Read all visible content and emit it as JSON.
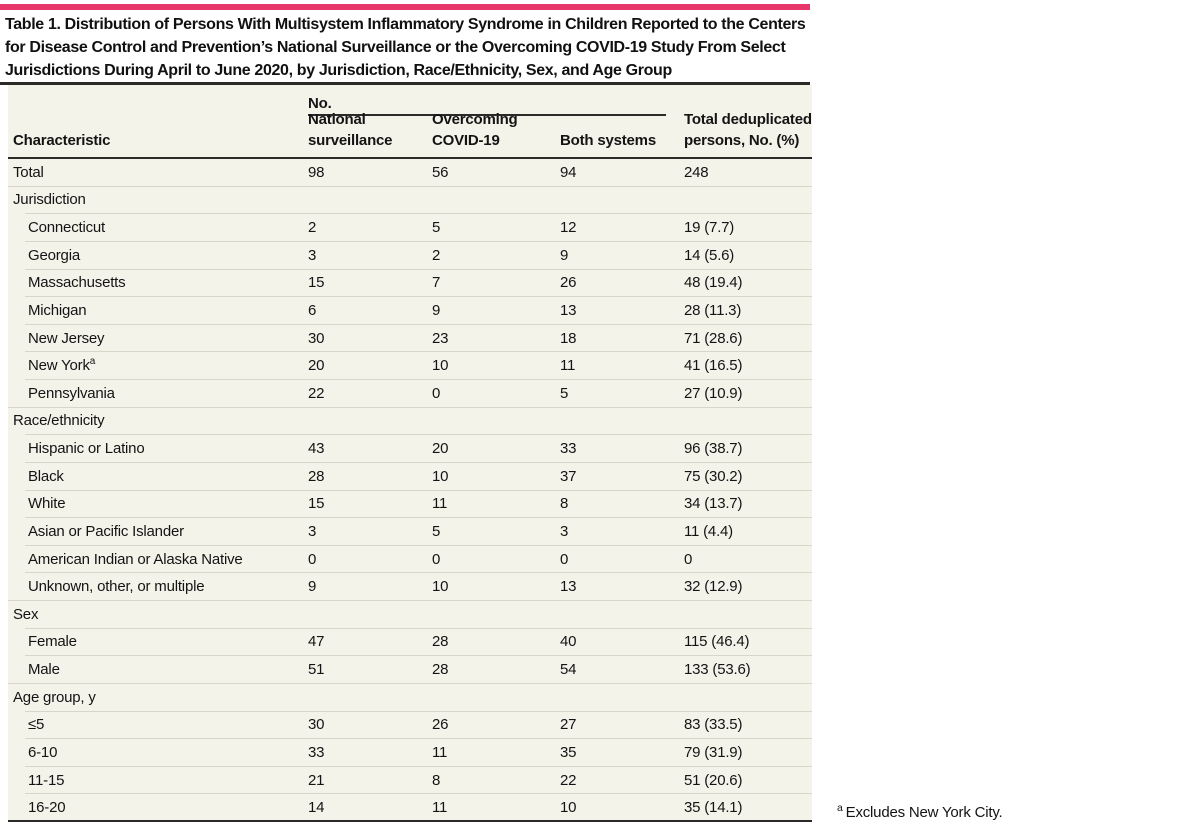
{
  "colors": {
    "accent_bar": "#e73669",
    "table_bg": "#f4f3ea",
    "rule_dark": "#2b2a28",
    "row_line": "#d7d6c8",
    "text": "#141414"
  },
  "title": {
    "lines": [
      "Table 1. Distribution of Persons With Multisystem Inflammatory Syndrome in Children Reported to the Centers",
      "for Disease Control and Prevention’s National Surveillance or the Overcoming COVID-19 Study From Select",
      "Jurisdictions During April to June 2020, by Jurisdiction, Race/Ethnicity, Sex, and Age Group"
    ]
  },
  "table": {
    "header": {
      "characteristic": "Characteristic",
      "group_label": "No.",
      "columns": [
        "National surveillance",
        "Overcoming COVID-19",
        "Both systems"
      ],
      "total_column": "Total deduplicated persons, No. (%)"
    },
    "rows": [
      {
        "label": "Total",
        "indent": 0,
        "section": false,
        "values": [
          "98",
          "56",
          "94",
          "248"
        ],
        "line": "full"
      },
      {
        "label": "Jurisdiction",
        "indent": 0,
        "section": true,
        "values": [
          "",
          "",
          "",
          ""
        ],
        "line": "indent"
      },
      {
        "label": "Connecticut",
        "indent": 1,
        "section": false,
        "values": [
          "2",
          "5",
          "12",
          "19 (7.7)"
        ],
        "line": "indent"
      },
      {
        "label": "Georgia",
        "indent": 1,
        "section": false,
        "values": [
          "3",
          "2",
          "9",
          "14 (5.6)"
        ],
        "line": "indent"
      },
      {
        "label": "Massachusetts",
        "indent": 1,
        "section": false,
        "values": [
          "15",
          "7",
          "26",
          "48 (19.4)"
        ],
        "line": "indent"
      },
      {
        "label": "Michigan",
        "indent": 1,
        "section": false,
        "values": [
          "6",
          "9",
          "13",
          "28 (11.3)"
        ],
        "line": "indent"
      },
      {
        "label": "New Jersey",
        "indent": 1,
        "section": false,
        "values": [
          "30",
          "23",
          "18",
          "71 (28.6)"
        ],
        "line": "indent"
      },
      {
        "label": "New York",
        "sup": "a",
        "indent": 1,
        "section": false,
        "values": [
          "20",
          "10",
          "11",
          "41 (16.5)"
        ],
        "line": "indent"
      },
      {
        "label": "Pennsylvania",
        "indent": 1,
        "section": false,
        "values": [
          "22",
          "0",
          "5",
          "27 (10.9)"
        ],
        "line": "full"
      },
      {
        "label": "Race/ethnicity",
        "indent": 0,
        "section": true,
        "values": [
          "",
          "",
          "",
          ""
        ],
        "line": "indent"
      },
      {
        "label": "Hispanic or Latino",
        "indent": 1,
        "section": false,
        "values": [
          "43",
          "20",
          "33",
          "96 (38.7)"
        ],
        "line": "indent"
      },
      {
        "label": "Black",
        "indent": 1,
        "section": false,
        "values": [
          "28",
          "10",
          "37",
          "75 (30.2)"
        ],
        "line": "indent"
      },
      {
        "label": "White",
        "indent": 1,
        "section": false,
        "values": [
          "15",
          "11",
          "8",
          "34 (13.7)"
        ],
        "line": "indent"
      },
      {
        "label": "Asian or Pacific Islander",
        "indent": 1,
        "section": false,
        "values": [
          "3",
          "5",
          "3",
          "11 (4.4)"
        ],
        "line": "indent"
      },
      {
        "label": "American Indian or Alaska Native",
        "indent": 1,
        "section": false,
        "values": [
          "0",
          "0",
          "0",
          "0"
        ],
        "line": "indent"
      },
      {
        "label": "Unknown, other, or multiple",
        "indent": 1,
        "section": false,
        "values": [
          "9",
          "10",
          "13",
          "32 (12.9)"
        ],
        "line": "full"
      },
      {
        "label": "Sex",
        "indent": 0,
        "section": true,
        "values": [
          "",
          "",
          "",
          ""
        ],
        "line": "indent"
      },
      {
        "label": "Female",
        "indent": 1,
        "section": false,
        "values": [
          "47",
          "28",
          "40",
          "115 (46.4)"
        ],
        "line": "indent"
      },
      {
        "label": "Male",
        "indent": 1,
        "section": false,
        "values": [
          "51",
          "28",
          "54",
          "133 (53.6)"
        ],
        "line": "full"
      },
      {
        "label": "Age group, y",
        "indent": 0,
        "section": true,
        "values": [
          "",
          "",
          "",
          ""
        ],
        "line": "indent"
      },
      {
        "label": "≤5",
        "indent": 1,
        "section": false,
        "values": [
          "30",
          "26",
          "27",
          "83 (33.5)"
        ],
        "line": "indent"
      },
      {
        "label": "6-10",
        "indent": 1,
        "section": false,
        "values": [
          "33",
          "11",
          "35",
          "79 (31.9)"
        ],
        "line": "indent"
      },
      {
        "label": "11-15",
        "indent": 1,
        "section": false,
        "values": [
          "21",
          "8",
          "22",
          "51 (20.6)"
        ],
        "line": "indent"
      },
      {
        "label": "16-20",
        "indent": 1,
        "section": false,
        "values": [
          "14",
          "11",
          "10",
          "35 (14.1)"
        ],
        "line": "none"
      }
    ]
  },
  "footnote": {
    "marker": "a",
    "text": "Excludes New York City."
  }
}
